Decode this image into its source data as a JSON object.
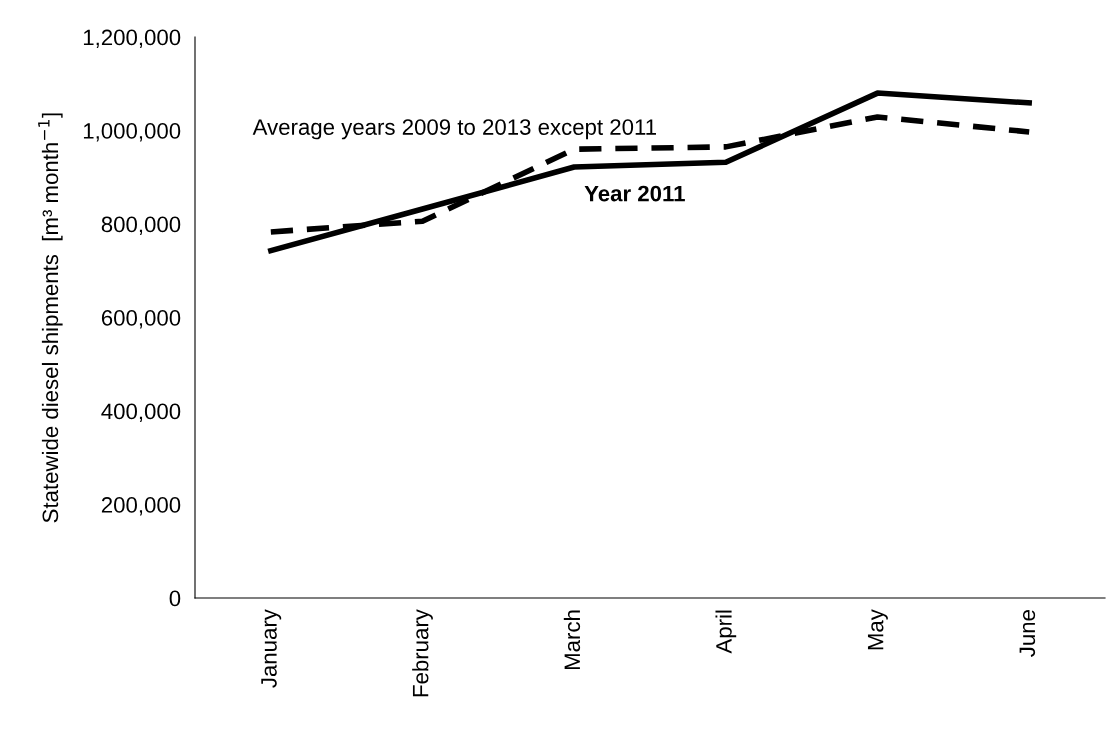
{
  "chart_data": {
    "type": "line",
    "ylabel": "Statewide diesel shipments  [m³ month$^{−1}$]",
    "categories": [
      "January",
      "February",
      "March",
      "April",
      "May",
      "June"
    ],
    "series": [
      {
        "name": "Average years 2009 to 2013 except 2011",
        "color": "#000000",
        "line_style": "dashed",
        "values": [
          783000,
          806000,
          960000,
          965000,
          1029000,
          997000
        ]
      },
      {
        "name": "Year 2011",
        "color": "#000000",
        "line_style": "solid",
        "values": [
          743000,
          832000,
          922000,
          932000,
          1080000,
          1059000
        ]
      }
    ],
    "ylim": [
      0,
      1200000
    ],
    "yticks": [
      {
        "value": 0,
        "label": "0"
      },
      {
        "value": 200000,
        "label": "200,000"
      },
      {
        "value": 400000,
        "label": "400,000"
      },
      {
        "value": 600000,
        "label": "600,000"
      },
      {
        "value": 800000,
        "label": "800,000"
      },
      {
        "value": 1000000,
        "label": "1,000,000"
      },
      {
        "value": 1200000,
        "label": "1,200,000"
      }
    ],
    "grid": false,
    "legend": false,
    "marker": "none"
  }
}
